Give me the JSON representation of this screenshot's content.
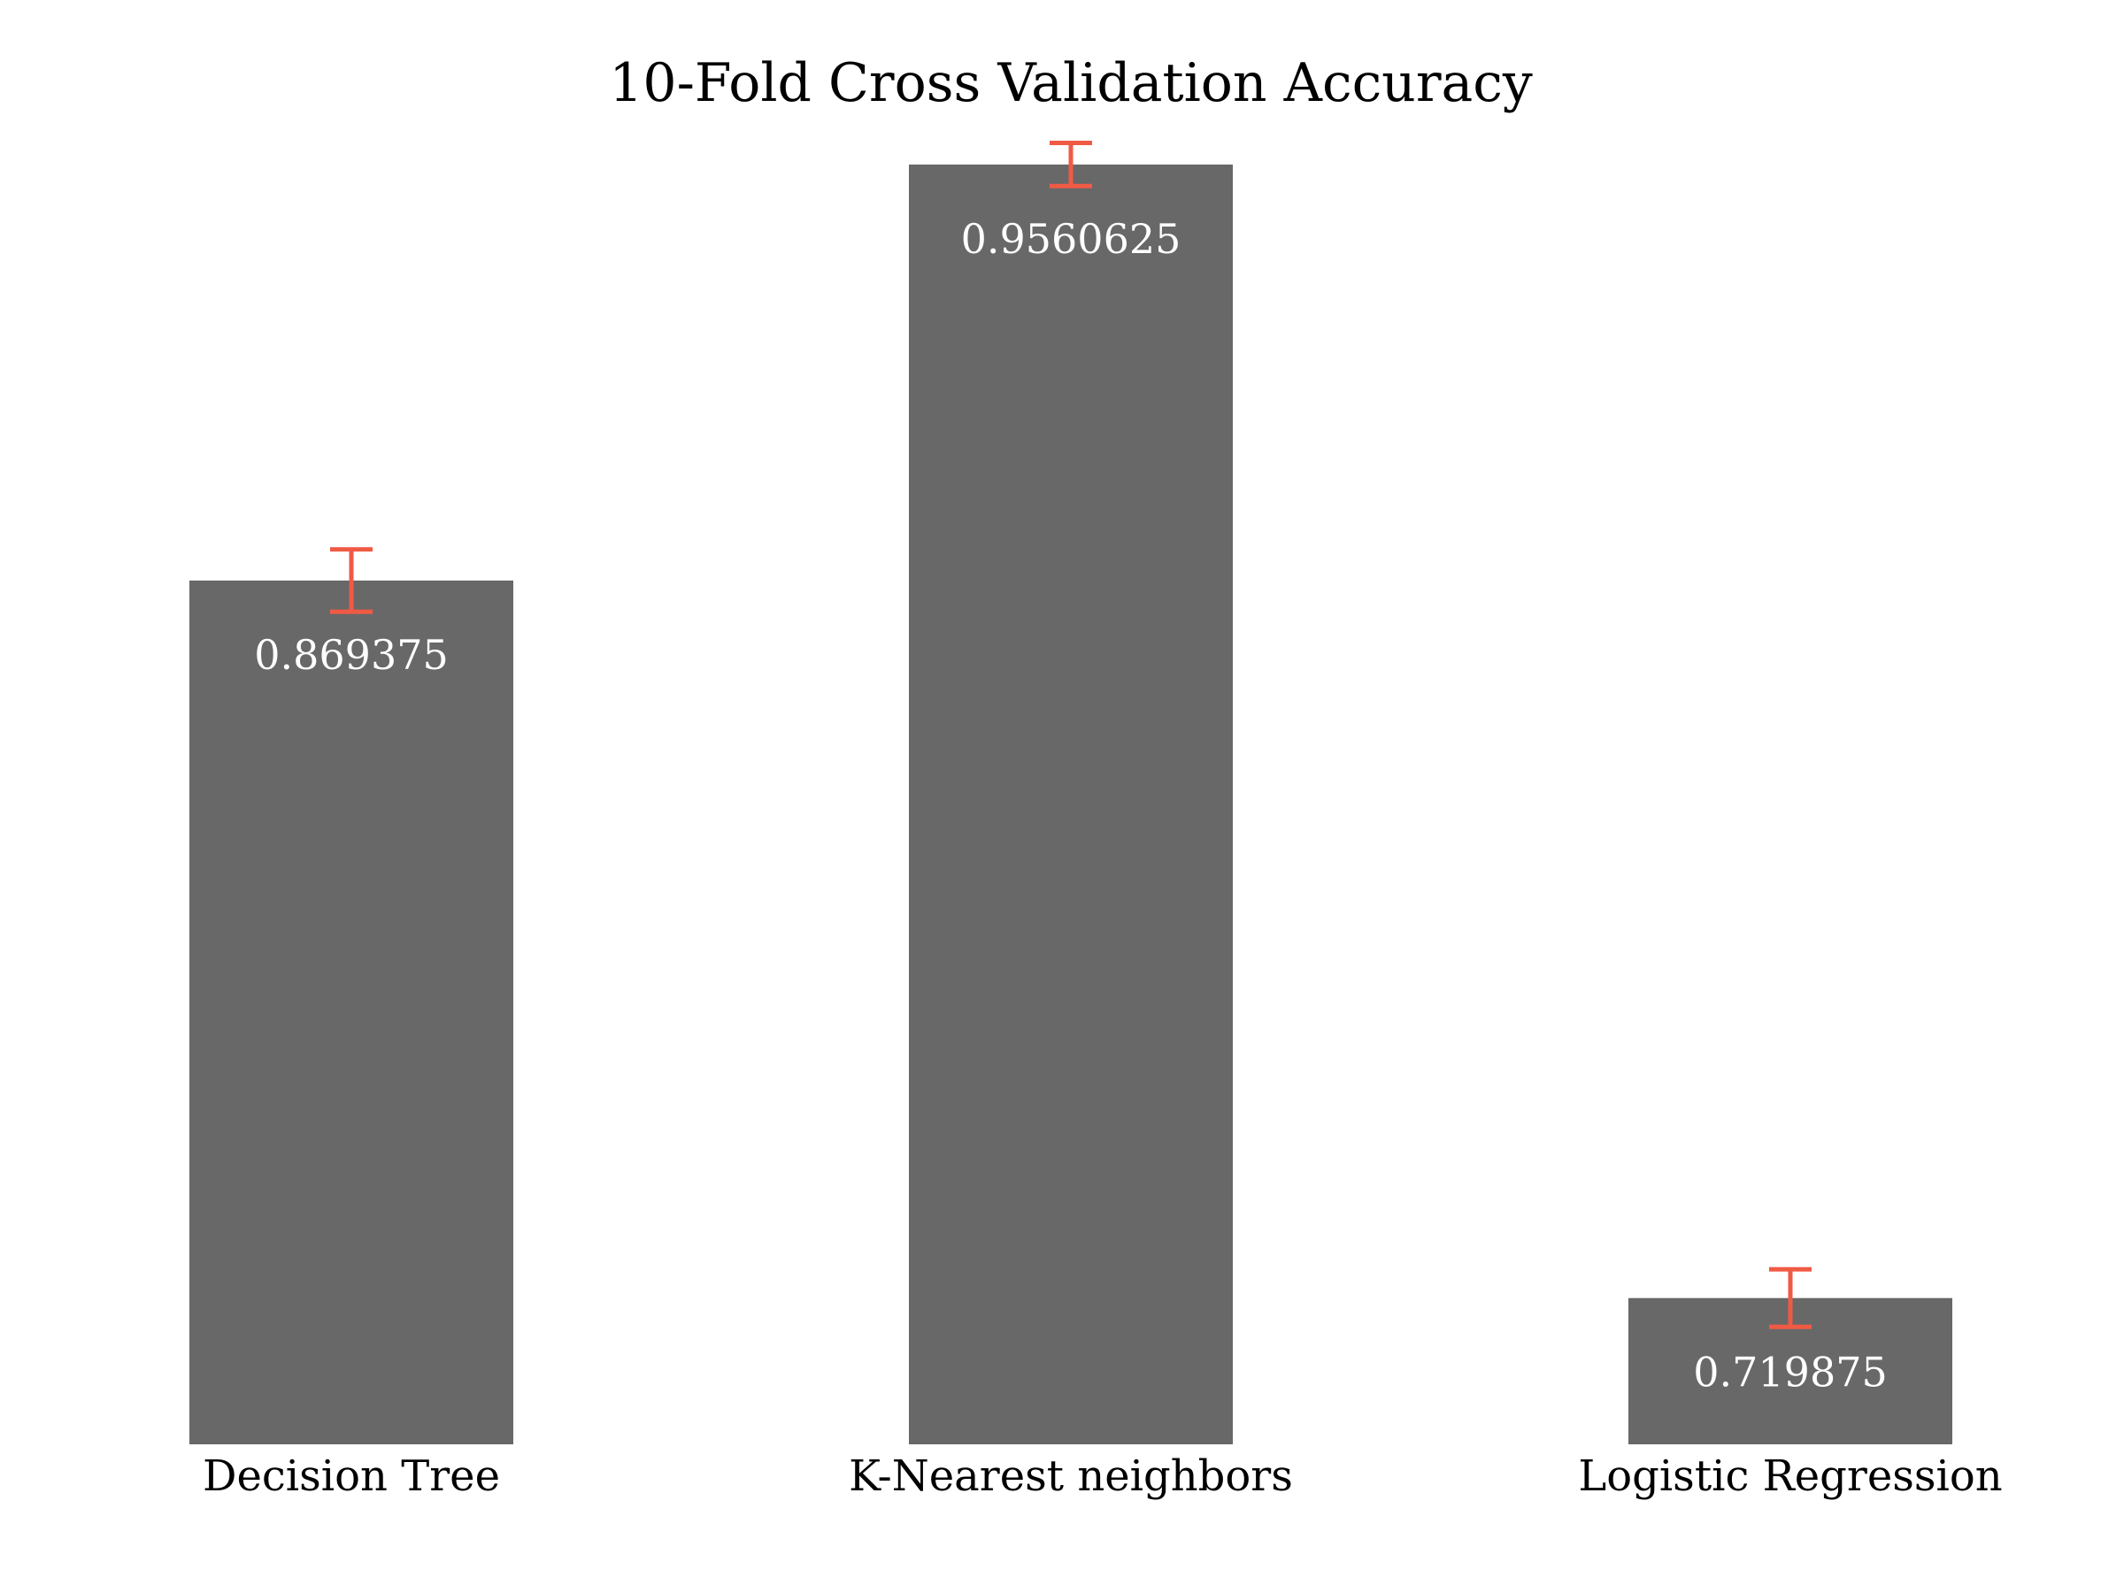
{
  "chart_data": {
    "type": "bar",
    "title": "10-Fold Cross Validation Accuracy",
    "xlabel": "",
    "ylabel": "",
    "categories": [
      "Decision Tree",
      "K-Nearest neighbors",
      "Logistic Regression"
    ],
    "values": [
      0.869375,
      0.9560625,
      0.719875
    ],
    "value_labels": [
      "0.869375",
      "0.9560625",
      "0.719875"
    ],
    "error": [
      0.0065,
      0.0045,
      0.006
    ],
    "ylim": [
      0.6894,
      0.9601
    ],
    "grid": false,
    "legend": "none",
    "colors": {
      "bar": "#686868",
      "error_bar": "#f05a44",
      "value_label": "#ffffff"
    }
  }
}
